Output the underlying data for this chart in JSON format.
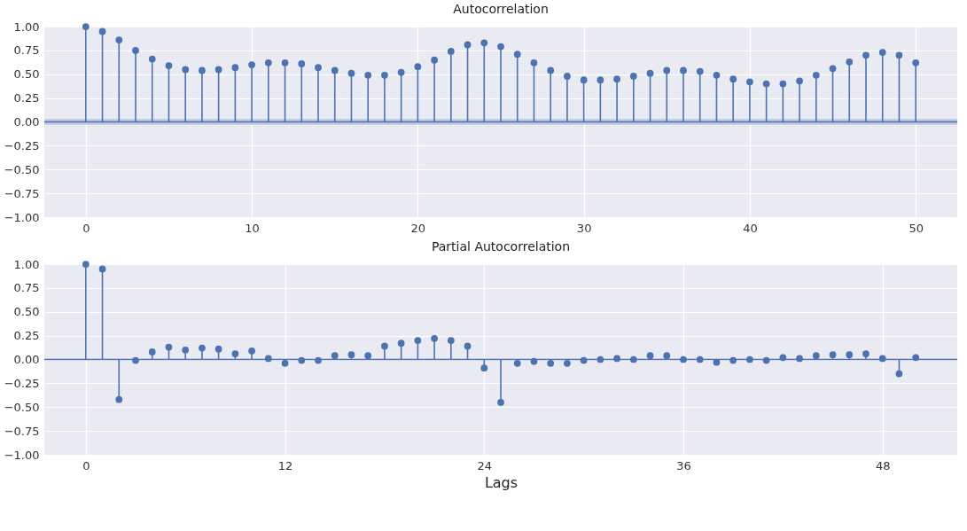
{
  "chart_data": [
    {
      "type": "lollipop",
      "title": "Autocorrelation",
      "x": [
        0,
        1,
        2,
        3,
        4,
        5,
        6,
        7,
        8,
        9,
        10,
        11,
        12,
        13,
        14,
        15,
        16,
        17,
        18,
        19,
        20,
        21,
        22,
        23,
        24,
        25,
        26,
        27,
        28,
        29,
        30,
        31,
        32,
        33,
        34,
        35,
        36,
        37,
        38,
        39,
        40,
        41,
        42,
        43,
        44,
        45,
        46,
        47,
        48,
        49,
        50
      ],
      "series": [
        {
          "color": "#4c72b0",
          "values": [
            1.0,
            0.95,
            0.86,
            0.75,
            0.66,
            0.59,
            0.55,
            0.54,
            0.55,
            0.57,
            0.6,
            0.62,
            0.62,
            0.61,
            0.57,
            0.54,
            0.51,
            0.49,
            0.49,
            0.52,
            0.58,
            0.65,
            0.74,
            0.81,
            0.83,
            0.79,
            0.71,
            0.62,
            0.54,
            0.48,
            0.44,
            0.44,
            0.45,
            0.48,
            0.51,
            0.54,
            0.54,
            0.53,
            0.49,
            0.45,
            0.42,
            0.4,
            0.4,
            0.43,
            0.49,
            0.56,
            0.63,
            0.7,
            0.73,
            0.7,
            0.62
          ]
        }
      ],
      "xlim": [
        -2.5,
        52.5
      ],
      "xticks": [
        0,
        10,
        20,
        30,
        40,
        50
      ],
      "ylim": [
        -1,
        1
      ],
      "yticks": [
        {
          "value": -1,
          "label": "−1.00"
        },
        {
          "value": -0.75,
          "label": "−0.75"
        },
        {
          "value": -0.5,
          "label": "−0.50"
        },
        {
          "value": -0.25,
          "label": "−0.25"
        },
        {
          "value": 0,
          "label": "0.00"
        },
        {
          "value": 0.25,
          "label": "0.25"
        },
        {
          "value": 0.5,
          "label": "0.50"
        },
        {
          "value": 0.75,
          "label": "0.75"
        },
        {
          "value": 1,
          "label": "1.00"
        }
      ],
      "bands": [
        {
          "axis": "y",
          "from": -0.03,
          "to": 0.03,
          "color": "#b4c0dc"
        }
      ],
      "ref_lines": [
        {
          "axis": "y",
          "value": 0,
          "color": "#4c72b0"
        }
      ],
      "grid": true,
      "marker": "circle"
    },
    {
      "type": "lollipop",
      "title": "Partial Autocorrelation",
      "xlabel": "Lags",
      "x": [
        0,
        1,
        2,
        3,
        4,
        5,
        6,
        7,
        8,
        9,
        10,
        11,
        12,
        13,
        14,
        15,
        16,
        17,
        18,
        19,
        20,
        21,
        22,
        23,
        24,
        25,
        26,
        27,
        28,
        29,
        30,
        31,
        32,
        33,
        34,
        35,
        36,
        37,
        38,
        39,
        40,
        41,
        42,
        43,
        44,
        45,
        46,
        47,
        48,
        49,
        50
      ],
      "series": [
        {
          "color": "#4c72b0",
          "values": [
            1.0,
            0.95,
            -0.42,
            -0.01,
            0.08,
            0.13,
            0.1,
            0.12,
            0.11,
            0.06,
            0.09,
            0.01,
            -0.04,
            -0.01,
            -0.01,
            0.04,
            0.05,
            0.04,
            0.14,
            0.17,
            0.2,
            0.22,
            0.2,
            0.14,
            -0.09,
            -0.45,
            -0.04,
            -0.02,
            -0.04,
            -0.04,
            -0.01,
            0.0,
            0.01,
            0.0,
            0.04,
            0.04,
            0.0,
            0.0,
            -0.03,
            -0.01,
            0.0,
            -0.01,
            0.02,
            0.01,
            0.04,
            0.05,
            0.05,
            0.06,
            0.01,
            -0.15,
            0.02
          ]
        }
      ],
      "xlim": [
        -2.5,
        52.5
      ],
      "xticks": [
        0,
        12,
        24,
        36,
        48
      ],
      "ylim": [
        -1,
        1
      ],
      "yticks": [
        {
          "value": -1,
          "label": "−1.00"
        },
        {
          "value": -0.75,
          "label": "−0.75"
        },
        {
          "value": -0.5,
          "label": "−0.50"
        },
        {
          "value": -0.25,
          "label": "−0.25"
        },
        {
          "value": 0,
          "label": "0.00"
        },
        {
          "value": 0.25,
          "label": "0.25"
        },
        {
          "value": 0.5,
          "label": "0.50"
        },
        {
          "value": 0.75,
          "label": "0.75"
        },
        {
          "value": 1,
          "label": "1.00"
        }
      ],
      "ref_lines": [
        {
          "axis": "y",
          "value": 0,
          "color": "#4c72b0"
        }
      ],
      "grid": true,
      "marker": "circle"
    }
  ]
}
